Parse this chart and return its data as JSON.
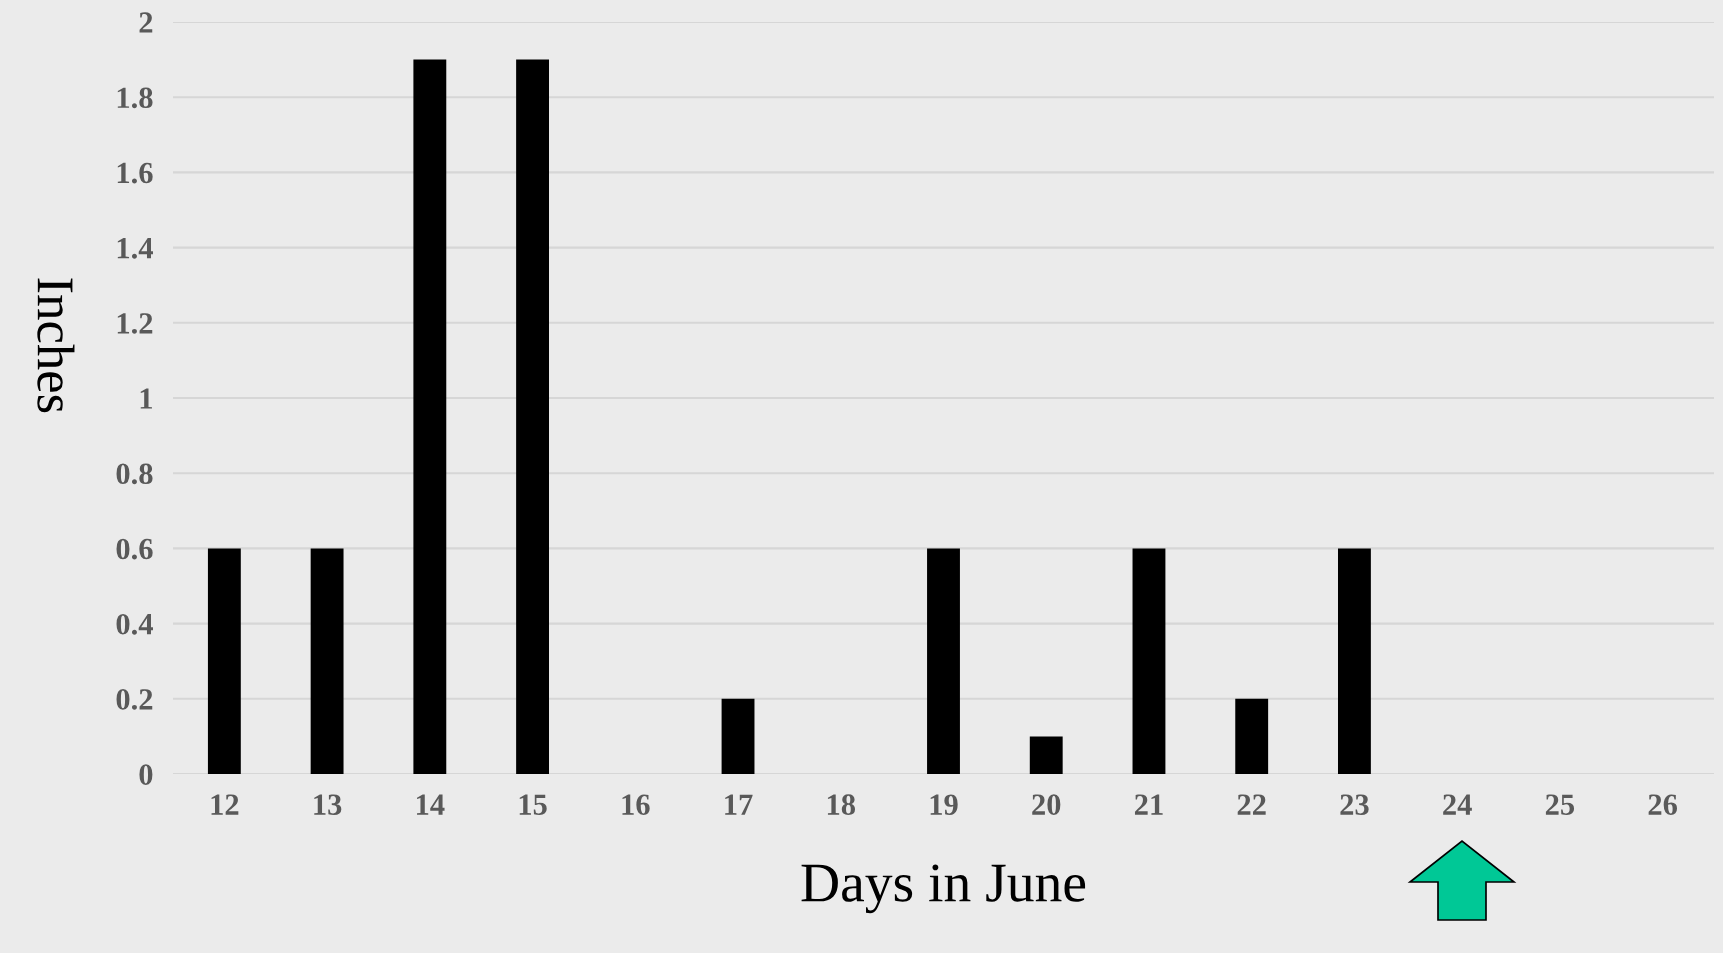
{
  "chart_data": {
    "type": "bar",
    "xlabel": "Days in June",
    "ylabel": "Inches",
    "categories": [
      "12",
      "13",
      "14",
      "15",
      "16",
      "17",
      "18",
      "19",
      "20",
      "21",
      "22",
      "23",
      "24",
      "25",
      "26"
    ],
    "values": [
      0.6,
      0.6,
      1.9,
      1.9,
      0,
      0.2,
      0,
      0.6,
      0.1,
      0.6,
      0.2,
      0.6,
      0,
      0,
      0
    ],
    "color": "#000000",
    "ylim": [
      0,
      2
    ],
    "yticks": [
      0,
      0.2,
      0.4,
      0.6,
      0.8,
      1,
      1.2,
      1.4,
      1.6,
      1.8,
      2
    ],
    "grid": "y",
    "legend": false
  }
}
